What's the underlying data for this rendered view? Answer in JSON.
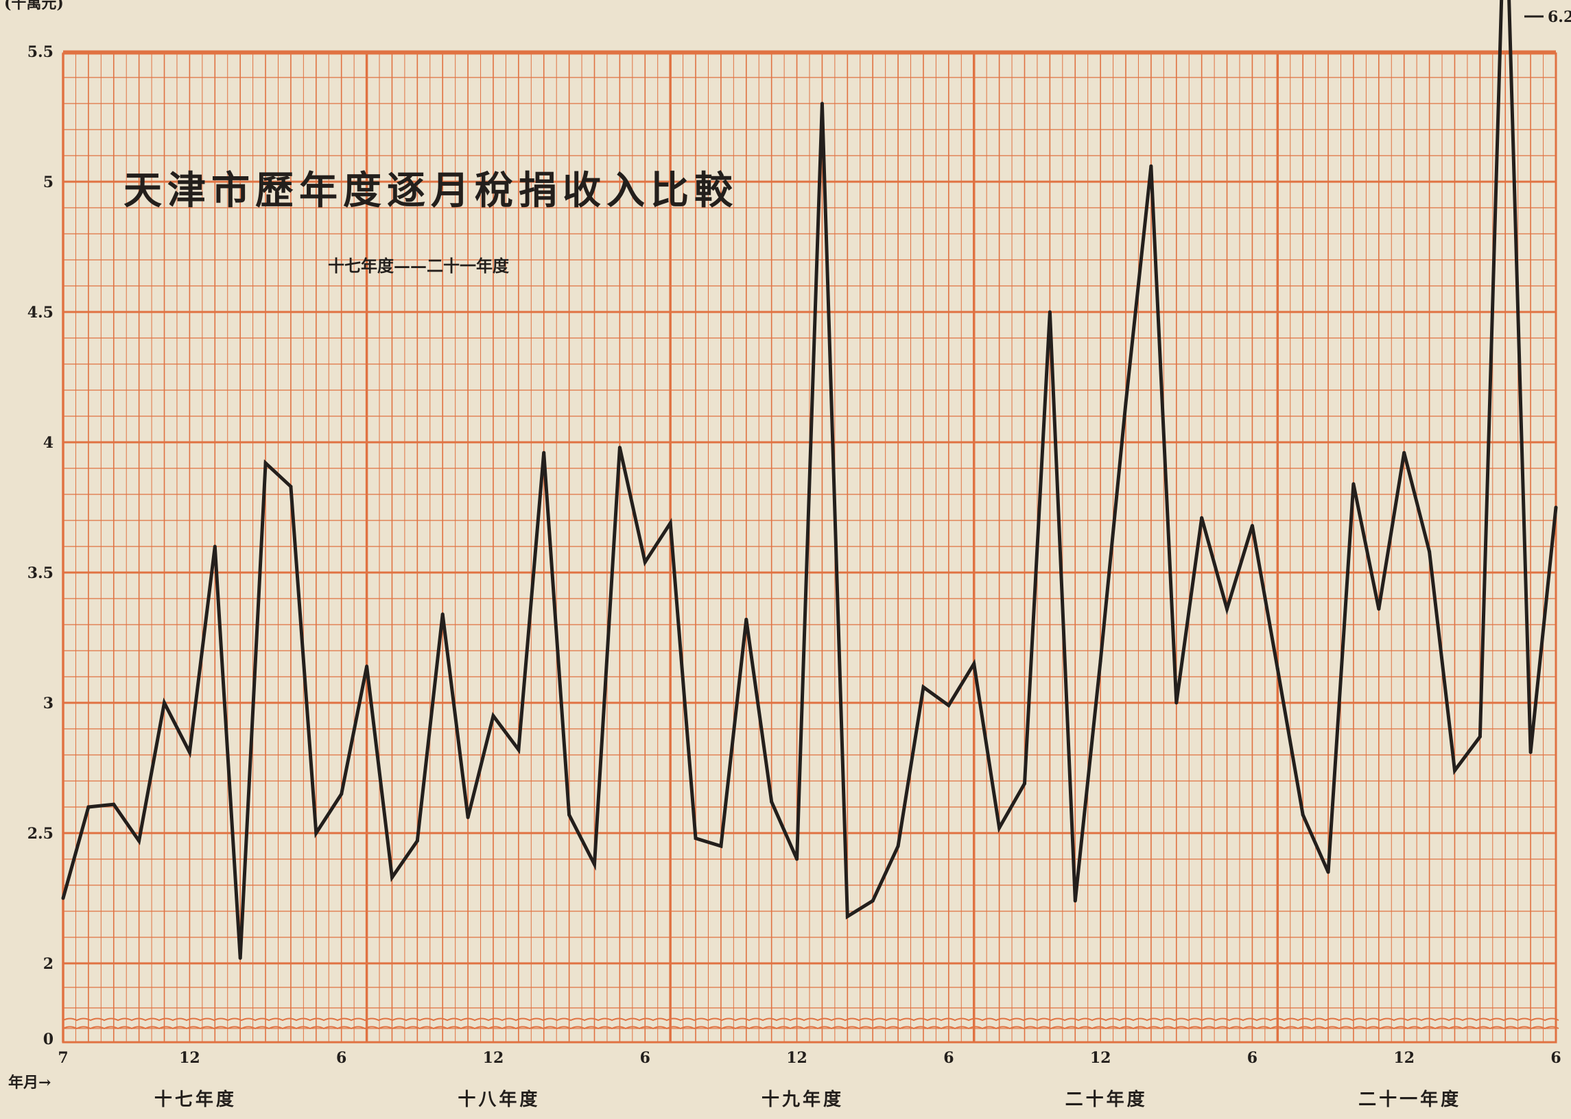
{
  "chart_data": {
    "type": "line",
    "title": "天津市歷年度逐月稅捐收入比較",
    "subtitle": "十七年度——二十一年度",
    "unit_label": "(千萬元)",
    "xlabel": "年月→",
    "ylabel": "",
    "ylim": [
      0,
      5.5
    ],
    "y_ticks": [
      "0",
      "2",
      "2.5",
      "3",
      "3.5",
      "4",
      "4.5",
      "5",
      "5.5"
    ],
    "x_month_ticks": [
      "7",
      "12",
      "6",
      "12",
      "6",
      "12",
      "6",
      "12",
      "6",
      "12",
      "6"
    ],
    "fiscal_years": [
      "十七年度",
      "十八年度",
      "十九年度",
      "二十年度",
      "二十一年度"
    ],
    "peak_annotation": "6.2",
    "series": [
      {
        "values": [
          2.25,
          2.6,
          2.61,
          2.47,
          3.0,
          2.81,
          3.6,
          2.02,
          3.92,
          3.83,
          2.5,
          2.65,
          3.14,
          2.33,
          2.47,
          3.34,
          2.56,
          2.95,
          2.82,
          3.96,
          2.57,
          2.38,
          3.98,
          3.54,
          3.69,
          2.48,
          2.45,
          3.32,
          2.62,
          2.4,
          5.3,
          2.18,
          2.24,
          2.45,
          3.06,
          2.99,
          3.15,
          2.52,
          2.69,
          4.5,
          2.24,
          3.16,
          4.15,
          5.06,
          3.0,
          3.71,
          3.36,
          3.68,
          3.13,
          2.57,
          2.35,
          3.84,
          3.36,
          3.96,
          3.58,
          2.74,
          2.87,
          6.2,
          2.81,
          3.75
        ]
      }
    ],
    "grid": true,
    "colors": {
      "background": "#ece3cf",
      "grid": "#e07242",
      "line": "#231f1c"
    }
  }
}
